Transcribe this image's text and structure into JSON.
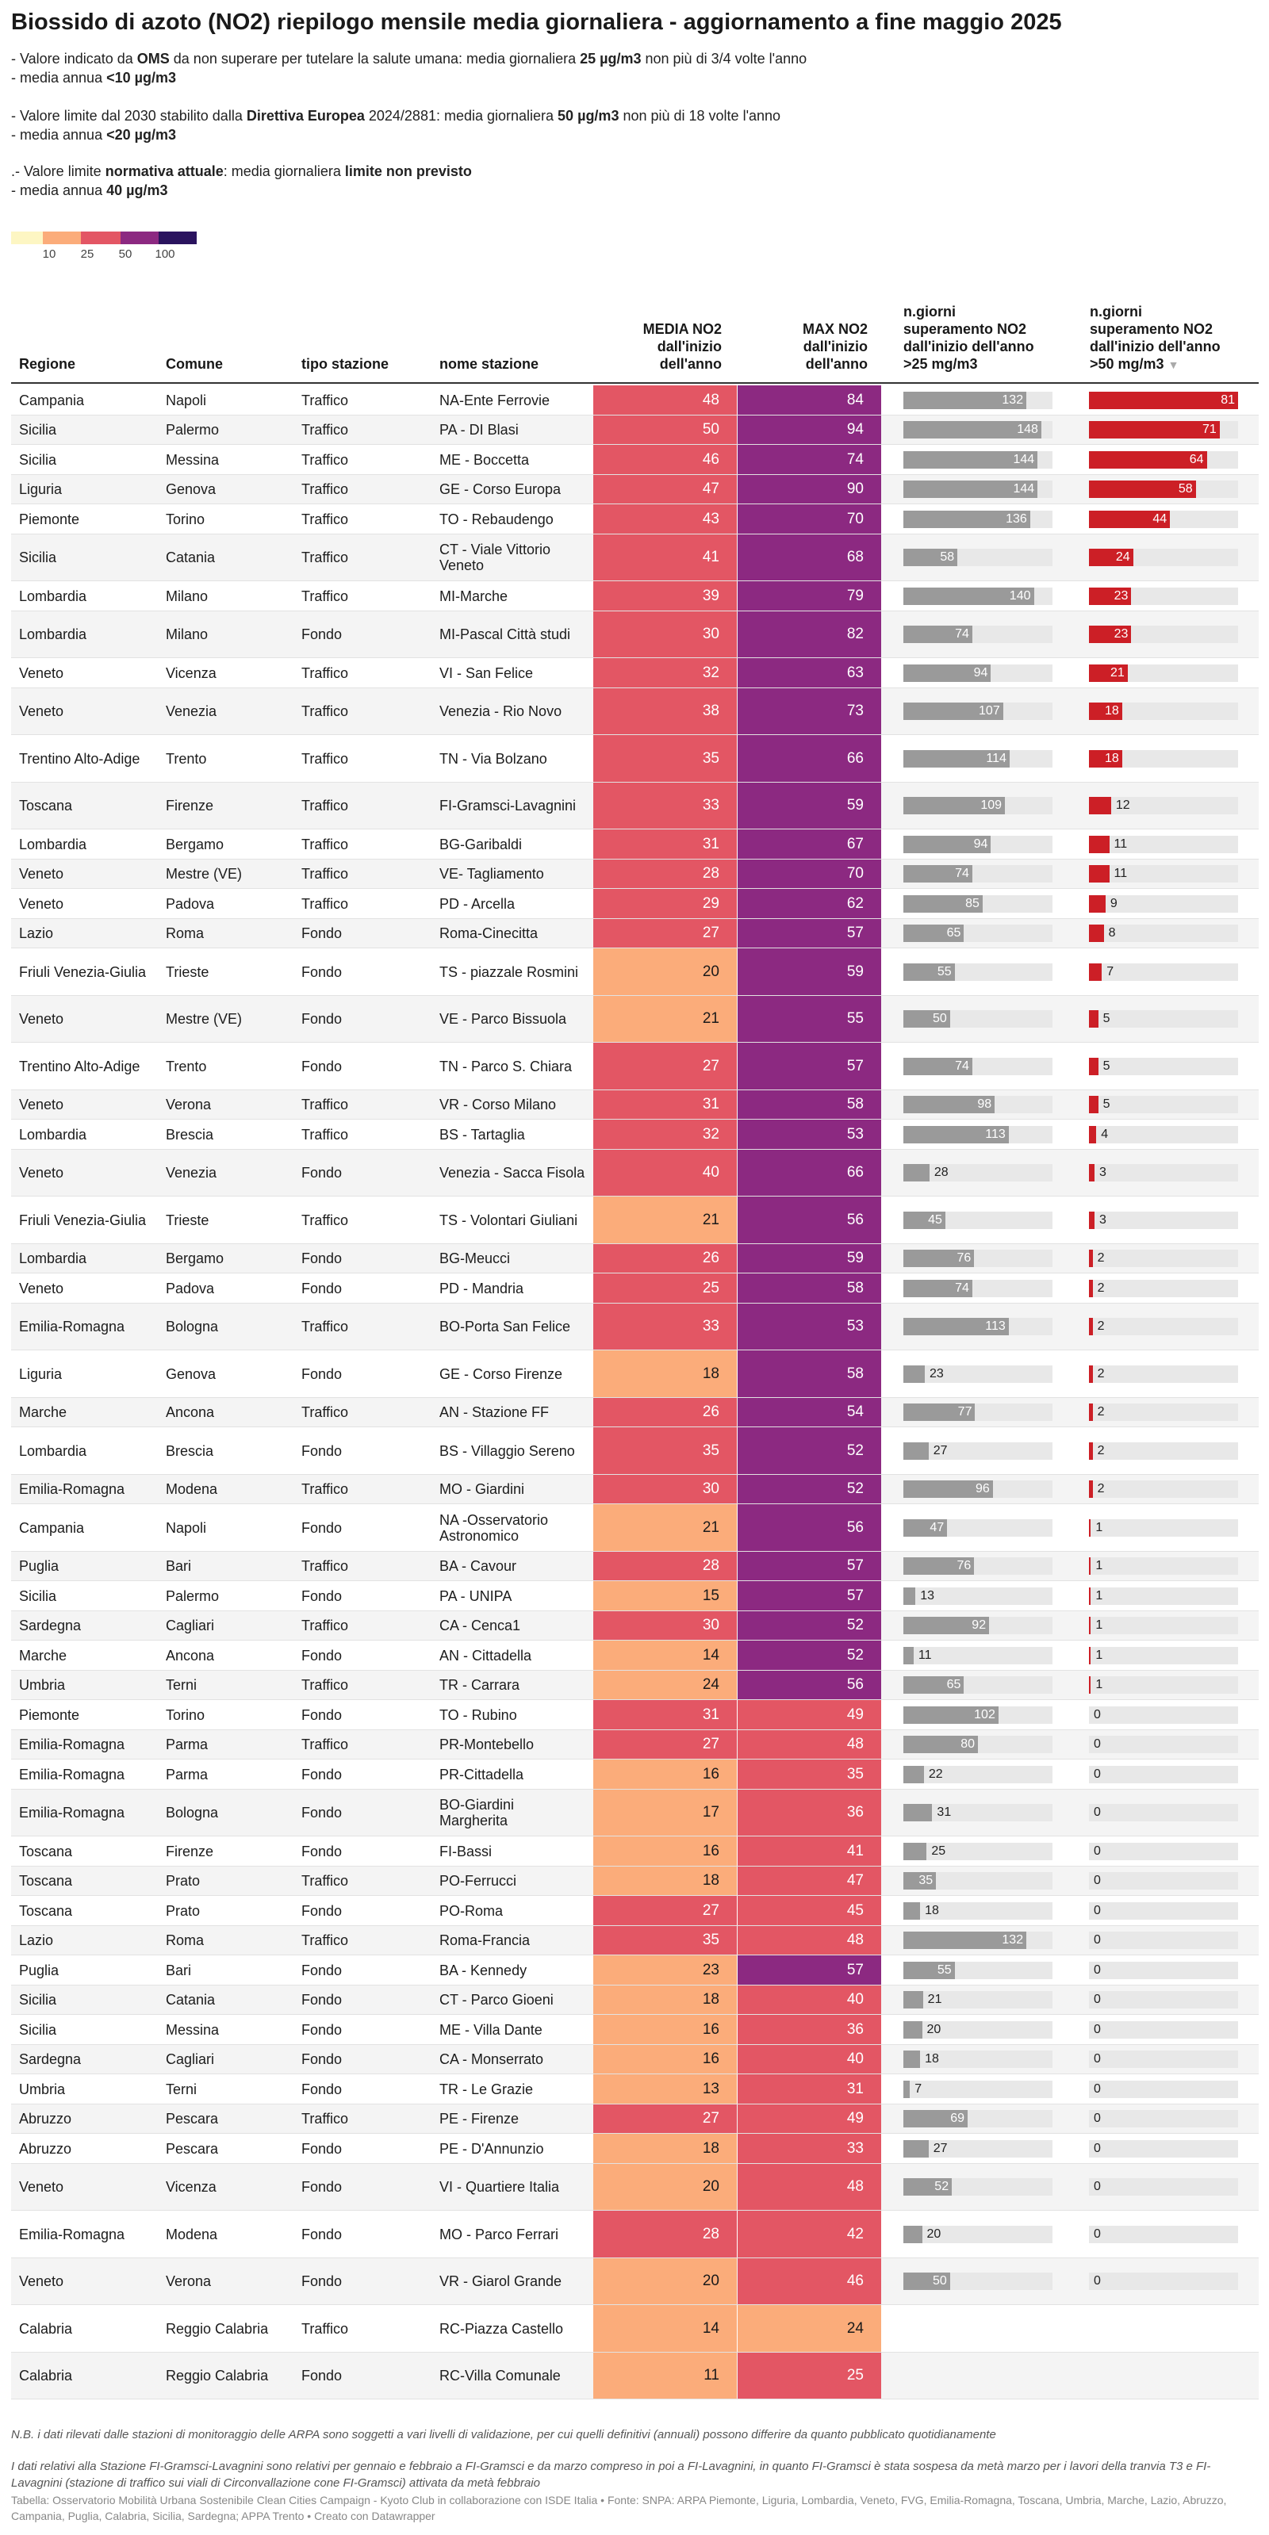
{
  "title": "Biossido di azoto (NO2) riepilogo mensile media giornaliera - aggiornamento a fine maggio 2025",
  "description": {
    "oms_line1": [
      "- Valore indicato da ",
      "OMS",
      " da non superare per tutelare la salute umana: media giornaliera ",
      "25 µg/m3",
      " non più di 3/4 volte l'anno"
    ],
    "oms_line2": [
      "- media annua ",
      "<10 µg/m3"
    ],
    "eu_line1": [
      "- Valore limite dal 2030 stabilito dalla ",
      "Direttiva Europea",
      " 2024/2881: media giornaliera ",
      "50 µg/m3",
      " non più di 18 volte l'anno"
    ],
    "eu_line2": [
      "- media annua ",
      "<20 µg/m3"
    ],
    "cur_line1": [
      ".- Valore limite ",
      "normativa attuale",
      ": media giornaliera ",
      "limite non previsto"
    ],
    "cur_line2": [
      "- media annua ",
      "40 µg/m3"
    ]
  },
  "legend": {
    "ticks": [
      "10",
      "25",
      "50",
      "100"
    ],
    "colors": [
      "#fdf6c3",
      "#fbac7a",
      "#e35664",
      "#8c2981",
      "#2a135e"
    ]
  },
  "colors": {
    "bucket_lt25": "#fbac7a",
    "bucket_25_50": "#e35664",
    "bucket_50_100": "#8c2981",
    "bar_gray": "#9a9a9a",
    "bar_red": "#cc1f26",
    "bar_bg": "#e8e8e8"
  },
  "headers": {
    "regione": "Regione",
    "comune": "Comune",
    "tipo": "tipo stazione",
    "nome": "nome stazione",
    "media": [
      "MEDIA NO2",
      "dall'inizio",
      "dell'anno"
    ],
    "max": [
      "MAX NO2",
      "dall'inizio",
      "dell'anno"
    ],
    "gt25": [
      "n.giorni",
      "superamento NO2",
      "dall'inizio dell'anno",
      ">25 mg/m3"
    ],
    "gt50": [
      "n.giorni",
      "superamento NO2",
      "dall'inizio dell'anno",
      ">50 mg/m3"
    ],
    "sort_icon": "▼"
  },
  "chart_data": {
    "type": "table",
    "title": "Biossido di azoto (NO2) riepilogo mensile media giornaliera - aggiornamento a fine maggio 2025",
    "columns": [
      "Regione",
      "Comune",
      "tipo stazione",
      "nome stazione",
      "MEDIA NO2 dall'inizio dell'anno",
      "MAX NO2 dall'inizio dell'anno",
      "n.giorni superamento NO2 dall'inizio dell'anno >25 mg/m3",
      "n.giorni superamento NO2 dall'inizio dell'anno >50 mg/m3"
    ],
    "bar_max_gt25": 160,
    "bar_max_gt50": 81,
    "rows": [
      [
        "Campania",
        "Napoli",
        "Traffico",
        "NA-Ente Ferrovie",
        48,
        84,
        132,
        81
      ],
      [
        "Sicilia",
        "Palermo",
        "Traffico",
        "PA - DI Blasi",
        50,
        94,
        148,
        71
      ],
      [
        "Sicilia",
        "Messina",
        "Traffico",
        "ME - Boccetta",
        46,
        74,
        144,
        64
      ],
      [
        "Liguria",
        "Genova",
        "Traffico",
        "GE - Corso Europa",
        47,
        90,
        144,
        58
      ],
      [
        "Piemonte",
        "Torino",
        "Traffico",
        "TO - Rebaudengo",
        43,
        70,
        136,
        44
      ],
      [
        "Sicilia",
        "Catania",
        "Traffico",
        "CT - Viale Vittorio Veneto",
        41,
        68,
        58,
        24
      ],
      [
        "Lombardia",
        "Milano",
        "Traffico",
        "MI-Marche",
        39,
        79,
        140,
        23
      ],
      [
        "Lombardia",
        "Milano",
        "Fondo",
        "MI-Pascal Città studi",
        30,
        82,
        74,
        23
      ],
      [
        "Veneto",
        "Vicenza",
        "Traffico",
        "VI - San Felice",
        32,
        63,
        94,
        21
      ],
      [
        "Veneto",
        "Venezia",
        "Traffico",
        "Venezia - Rio Novo",
        38,
        73,
        107,
        18
      ],
      [
        "Trentino Alto-Adige",
        "Trento",
        "Traffico",
        "TN - Via Bolzano",
        35,
        66,
        114,
        18
      ],
      [
        "Toscana",
        "Firenze",
        "Traffico",
        "FI-Gramsci-Lavagnini",
        33,
        59,
        109,
        12
      ],
      [
        "Lombardia",
        "Bergamo",
        "Traffico",
        "BG-Garibaldi",
        31,
        67,
        94,
        11
      ],
      [
        "Veneto",
        "Mestre (VE)",
        "Traffico",
        "VE- Tagliamento",
        28,
        70,
        74,
        11
      ],
      [
        "Veneto",
        "Padova",
        "Traffico",
        "PD - Arcella",
        29,
        62,
        85,
        9
      ],
      [
        "Lazio",
        "Roma",
        "Fondo",
        "Roma-Cinecitta",
        27,
        57,
        65,
        8
      ],
      [
        "Friuli Venezia-Giulia",
        "Trieste",
        "Fondo",
        "TS - piazzale Rosmini",
        20,
        59,
        55,
        7
      ],
      [
        "Veneto",
        "Mestre (VE)",
        "Fondo",
        "VE - Parco Bissuola",
        21,
        55,
        50,
        5
      ],
      [
        "Trentino Alto-Adige",
        "Trento",
        "Fondo",
        "TN - Parco S. Chiara",
        27,
        57,
        74,
        5
      ],
      [
        "Veneto",
        "Verona",
        "Traffico",
        "VR - Corso Milano",
        31,
        58,
        98,
        5
      ],
      [
        "Lombardia",
        "Brescia",
        "Traffico",
        "BS - Tartaglia",
        32,
        53,
        113,
        4
      ],
      [
        "Veneto",
        "Venezia",
        "Fondo",
        "Venezia - Sacca Fisola",
        40,
        66,
        28,
        3
      ],
      [
        "Friuli Venezia-Giulia",
        "Trieste",
        "Traffico",
        "TS - Volontari Giuliani",
        21,
        56,
        45,
        3
      ],
      [
        "Lombardia",
        "Bergamo",
        "Fondo",
        "BG-Meucci",
        26,
        59,
        76,
        2
      ],
      [
        "Veneto",
        "Padova",
        "Fondo",
        "PD - Mandria",
        25,
        58,
        74,
        2
      ],
      [
        "Emilia-Romagna",
        "Bologna",
        "Traffico",
        "BO-Porta San Felice",
        33,
        53,
        113,
        2
      ],
      [
        "Liguria",
        "Genova",
        "Fondo",
        "GE - Corso Firenze",
        18,
        58,
        23,
        2
      ],
      [
        "Marche",
        "Ancona",
        "Traffico",
        "AN - Stazione FF",
        26,
        54,
        77,
        2
      ],
      [
        "Lombardia",
        "Brescia",
        "Fondo",
        "BS - Villaggio Sereno",
        35,
        52,
        27,
        2
      ],
      [
        "Emilia-Romagna",
        "Modena",
        "Traffico",
        "MO - Giardini",
        30,
        52,
        96,
        2
      ],
      [
        "Campania",
        "Napoli",
        "Fondo",
        "NA -Osservatorio Astronomico",
        21,
        56,
        47,
        1
      ],
      [
        "Puglia",
        "Bari",
        "Traffico",
        "BA - Cavour",
        28,
        57,
        76,
        1
      ],
      [
        "Sicilia",
        "Palermo",
        "Fondo",
        "PA - UNIPA",
        15,
        57,
        13,
        1
      ],
      [
        "Sardegna",
        "Cagliari",
        "Traffico",
        "CA - Cenca1",
        30,
        52,
        92,
        1
      ],
      [
        "Marche",
        "Ancona",
        "Fondo",
        "AN - Cittadella",
        14,
        52,
        11,
        1
      ],
      [
        "Umbria",
        "Terni",
        "Traffico",
        "TR - Carrara",
        24,
        56,
        65,
        1
      ],
      [
        "Piemonte",
        "Torino",
        "Fondo",
        "TO - Rubino",
        31,
        49,
        102,
        0
      ],
      [
        "Emilia-Romagna",
        "Parma",
        "Traffico",
        "PR-Montebello",
        27,
        48,
        80,
        0
      ],
      [
        "Emilia-Romagna",
        "Parma",
        "Fondo",
        "PR-Cittadella",
        16,
        35,
        22,
        0
      ],
      [
        "Emilia-Romagna",
        "Bologna",
        "Fondo",
        "BO-Giardini Margherita",
        17,
        36,
        31,
        0
      ],
      [
        "Toscana",
        "Firenze",
        "Fondo",
        "FI-Bassi",
        16,
        41,
        25,
        0
      ],
      [
        "Toscana",
        "Prato",
        "Traffico",
        "PO-Ferrucci",
        18,
        47,
        35,
        0
      ],
      [
        "Toscana",
        "Prato",
        "Fondo",
        "PO-Roma",
        27,
        45,
        18,
        0
      ],
      [
        "Lazio",
        "Roma",
        "Traffico",
        "Roma-Francia",
        35,
        48,
        132,
        0
      ],
      [
        "Puglia",
        "Bari",
        "Fondo",
        "BA - Kennedy",
        23,
        57,
        55,
        0
      ],
      [
        "Sicilia",
        "Catania",
        "Fondo",
        "CT - Parco Gioeni",
        18,
        40,
        21,
        0
      ],
      [
        "Sicilia",
        "Messina",
        "Fondo",
        "ME - Villa Dante",
        16,
        36,
        20,
        0
      ],
      [
        "Sardegna",
        "Cagliari",
        "Fondo",
        "CA - Monserrato",
        16,
        40,
        18,
        0
      ],
      [
        "Umbria",
        "Terni",
        "Fondo",
        "TR - Le Grazie",
        13,
        31,
        7,
        0
      ],
      [
        "Abruzzo",
        "Pescara",
        "Traffico",
        "PE - Firenze",
        27,
        49,
        69,
        0
      ],
      [
        "Abruzzo",
        "Pescara",
        "Fondo",
        "PE - D'Annunzio",
        18,
        33,
        27,
        0
      ],
      [
        "Veneto",
        "Vicenza",
        "Fondo",
        "VI - Quartiere Italia",
        20,
        48,
        52,
        0
      ],
      [
        "Emilia-Romagna",
        "Modena",
        "Fondo",
        "MO - Parco Ferrari",
        28,
        42,
        20,
        0
      ],
      [
        "Veneto",
        "Verona",
        "Fondo",
        "VR - Giarol Grande",
        20,
        46,
        50,
        0
      ],
      [
        "Calabria",
        "Reggio Calabria",
        "Traffico",
        "RC-Piazza Castello",
        14,
        24,
        null,
        null
      ],
      [
        "Calabria",
        "Reggio Calabria",
        "Fondo",
        "RC-Villa Comunale",
        11,
        25,
        null,
        null
      ]
    ]
  },
  "footnotes": {
    "note1": "N.B. i dati rilevati dalle stazioni di monitoraggio delle ARPA sono soggetti a vari livelli di validazione, per cui quelli definitivi (annuali) possono differire da quanto pubblicato quotidianamente",
    "note2": "I dati relativi alla Stazione FI-Gramsci-Lavagnini sono relativi per gennaio e febbraio a FI-Gramsci e da marzo compreso in poi a FI-Lavagnini, in quanto FI-Gramsci è stata sospesa da metà marzo per i lavori della tranvia T3 e FI-Lavagnini (stazione di traffico sui viali di Circonvallazione cone FI-Gramsci) attivata da metà febbraio",
    "credit": "Tabella: Osservatorio Mobilità Urbana Sostenibile Clean Cities Campaign - Kyoto Club in collaborazione con ISDE Italia • Fonte: SNPA: ARPA Piemonte, Liguria, Lombardia, Veneto, FVG, Emilia-Romagna, Toscana, Umbria, Marche, Lazio, Abruzzo, Campania, Puglia, Calabria, Sicilia, Sardegna; APPA Trento • Creato con Datawrapper"
  }
}
